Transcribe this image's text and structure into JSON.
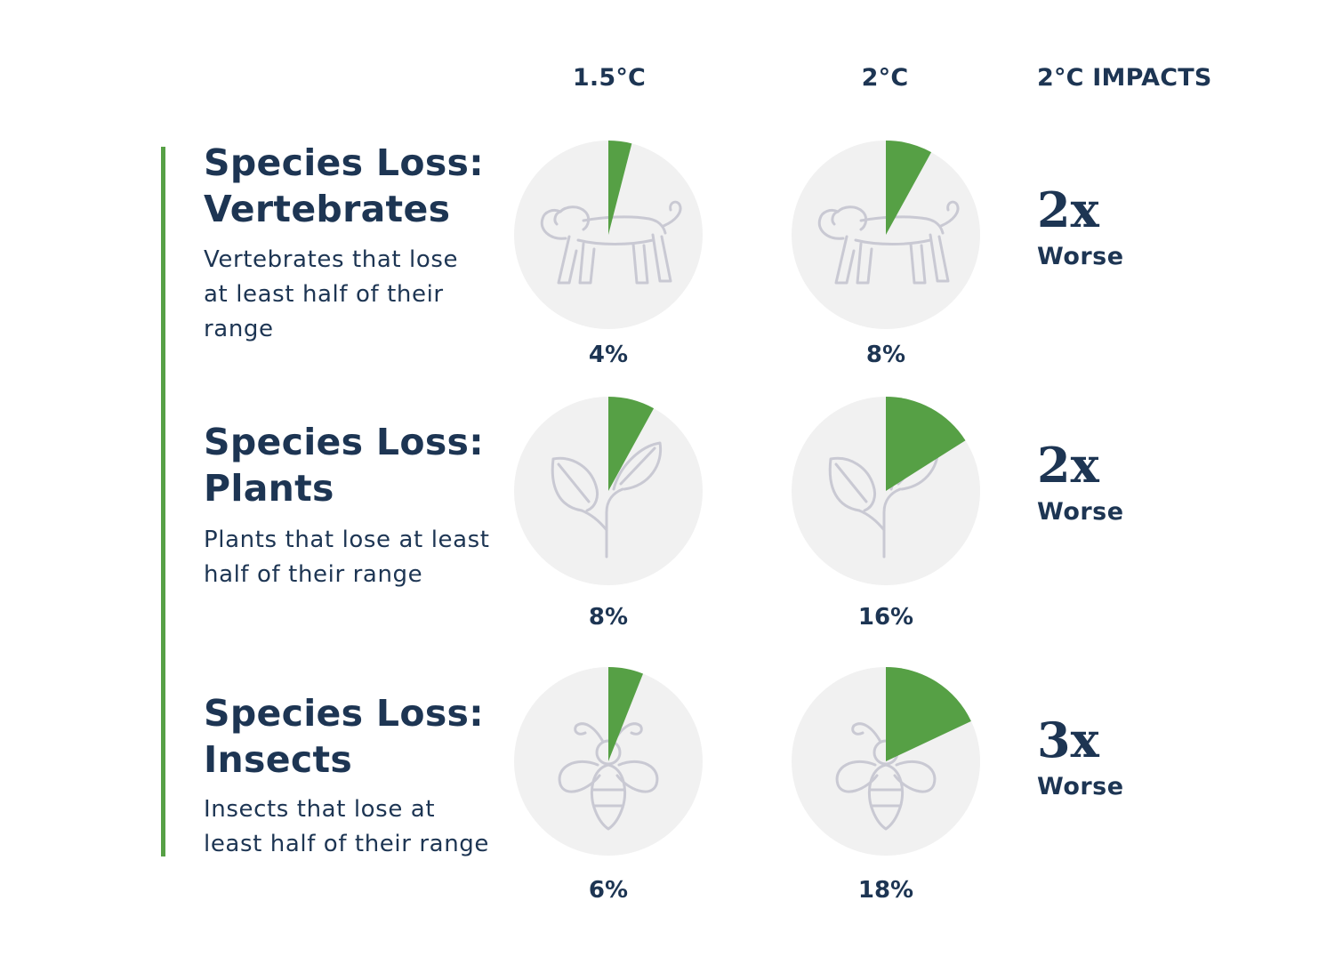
{
  "headers": {
    "col_15": "1.5°C",
    "col_2": "2°C",
    "col_impacts": "2°C IMPACTS"
  },
  "colors": {
    "accent": "#56a045",
    "wedge": "#56a045",
    "circle": "#f1f1f1",
    "icon": "#c9c9d3",
    "text": "#1d3553"
  },
  "chart_data": {
    "type": "pie",
    "categories": [
      "1.5°C",
      "2°C"
    ],
    "rows": [
      {
        "title_line1": "Species Loss:",
        "title_line2": "Vertebrates",
        "desc_lines": [
          "Vertebrates that lose",
          "at least half of their",
          "range"
        ],
        "icon": "monkey-icon",
        "values": [
          4,
          8
        ],
        "labels": [
          "4%",
          "8%"
        ],
        "impact_value": "2x",
        "impact_label": "Worse"
      },
      {
        "title_line1": "Species Loss:",
        "title_line2": "Plants",
        "desc_lines": [
          "Plants that lose at least",
          "half of their range"
        ],
        "icon": "plant-icon",
        "values": [
          8,
          16
        ],
        "labels": [
          "8%",
          "16%"
        ],
        "impact_value": "2x",
        "impact_label": "Worse"
      },
      {
        "title_line1": "Species Loss:",
        "title_line2": "Insects",
        "desc_lines": [
          "Insects that lose at",
          "least half of their range"
        ],
        "icon": "bee-icon",
        "values": [
          6,
          18
        ],
        "labels": [
          "6%",
          "18%"
        ],
        "impact_value": "3x",
        "impact_label": "Worse"
      }
    ]
  }
}
